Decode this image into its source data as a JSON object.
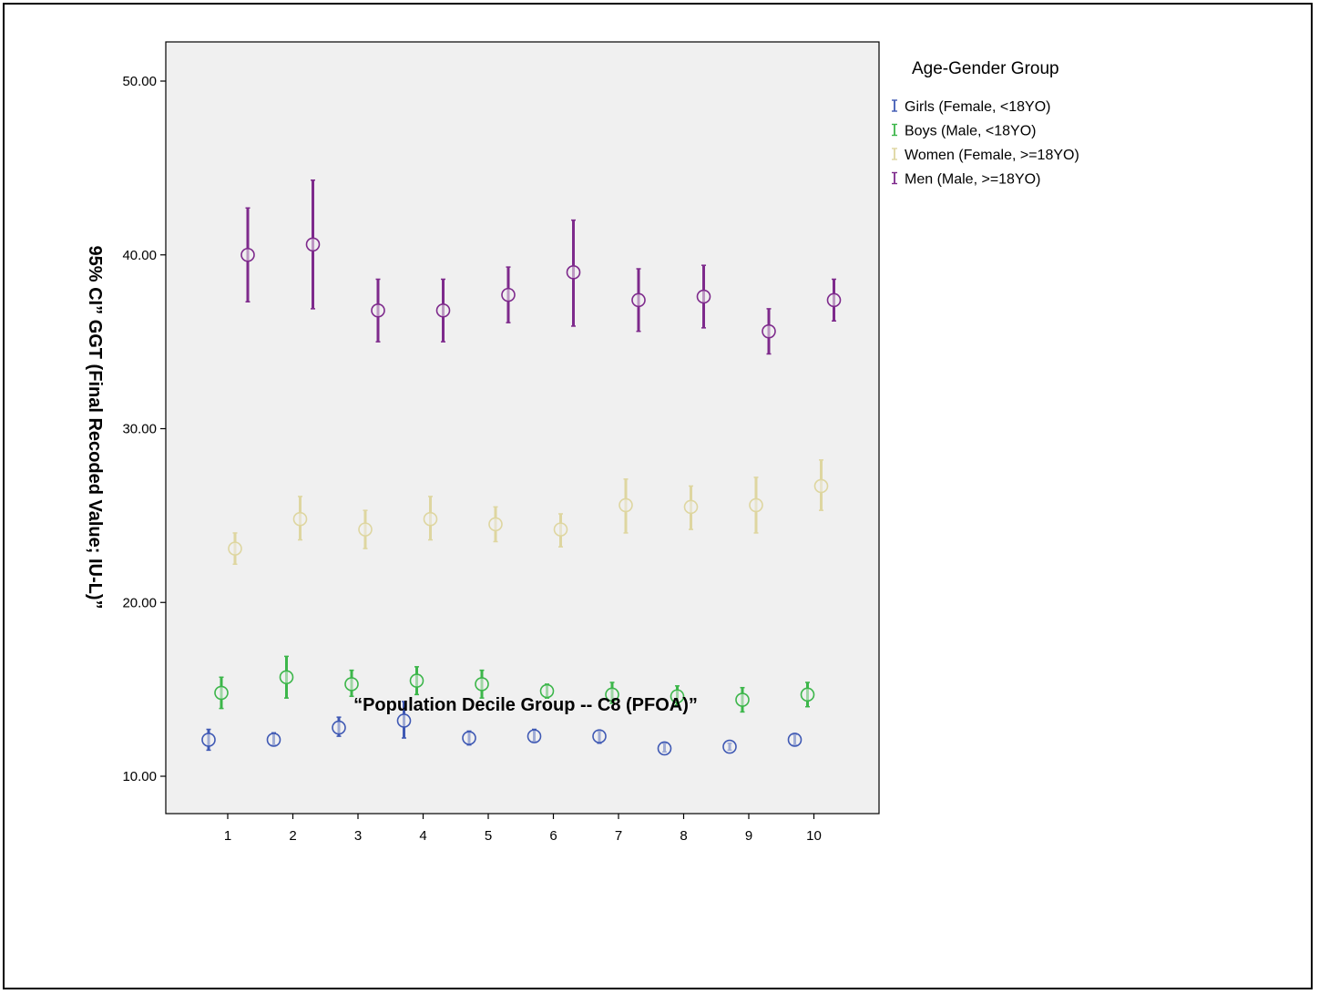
{
  "chart_data": {
    "type": "scatter",
    "subtype": "error-bar",
    "xlabel": "“Population Decile Group --  C8 (PFOA)”",
    "ylabel": "95% CI” GGT (Final Recoded Value; IU-L)”",
    "categories": [
      "1",
      "2",
      "3",
      "4",
      "5",
      "6",
      "7",
      "8",
      "9",
      "10"
    ],
    "ylim": [
      7.8,
      52.3
    ],
    "yticks": [
      10,
      20,
      30,
      40,
      50
    ],
    "ytick_labels": [
      "10.00",
      "20.00",
      "30.00",
      "40.00",
      "50.00"
    ],
    "grid": false,
    "legend": {
      "title": "Age-Gender Group",
      "position": "right",
      "entries": [
        "Girls (Female, <18YO)",
        "Boys (Male, <18YO)",
        "Women (Female, >=18YO)",
        "Men (Male, >=18YO)"
      ]
    },
    "series": [
      {
        "name": "Girls (Female, <18YO)",
        "color": "#3f59b4",
        "mean": [
          12.1,
          12.1,
          12.8,
          13.2,
          12.2,
          12.3,
          12.3,
          11.6,
          11.7,
          12.1
        ],
        "lower": [
          11.5,
          11.8,
          12.3,
          12.2,
          11.8,
          12.0,
          11.9,
          11.4,
          11.5,
          11.8
        ],
        "upper": [
          12.7,
          12.5,
          13.4,
          14.3,
          12.6,
          12.7,
          12.6,
          11.9,
          11.9,
          12.4
        ]
      },
      {
        "name": "Boys (Male, <18YO)",
        "color": "#3cb64a",
        "mean": [
          14.8,
          15.7,
          15.3,
          15.5,
          15.3,
          14.9,
          14.7,
          14.6,
          14.4,
          14.7
        ],
        "lower": [
          13.9,
          14.5,
          14.6,
          14.7,
          14.5,
          14.5,
          14.2,
          14.1,
          13.7,
          14.0
        ],
        "upper": [
          15.7,
          16.9,
          16.1,
          16.3,
          16.1,
          15.3,
          15.4,
          15.2,
          15.1,
          15.4
        ]
      },
      {
        "name": "Women (Female, >=18YO)",
        "color": "#ded6a0",
        "mean": [
          23.1,
          24.8,
          24.2,
          24.8,
          24.5,
          24.2,
          25.6,
          25.5,
          25.6,
          26.7
        ],
        "lower": [
          22.2,
          23.6,
          23.1,
          23.6,
          23.5,
          23.2,
          24.0,
          24.2,
          24.0,
          25.3
        ],
        "upper": [
          24.0,
          26.1,
          25.3,
          26.1,
          25.5,
          25.1,
          27.1,
          26.7,
          27.2,
          28.2
        ]
      },
      {
        "name": "Men (Male, >=18YO)",
        "color": "#7e2a8c",
        "mean": [
          40.0,
          40.6,
          36.8,
          36.8,
          37.7,
          39.0,
          37.4,
          37.6,
          35.6,
          37.4
        ],
        "lower": [
          37.3,
          36.9,
          35.0,
          35.0,
          36.1,
          35.9,
          35.6,
          35.8,
          34.3,
          36.2
        ],
        "upper": [
          42.7,
          44.3,
          38.6,
          38.6,
          39.3,
          42.0,
          39.2,
          39.4,
          36.9,
          38.6
        ]
      }
    ]
  }
}
